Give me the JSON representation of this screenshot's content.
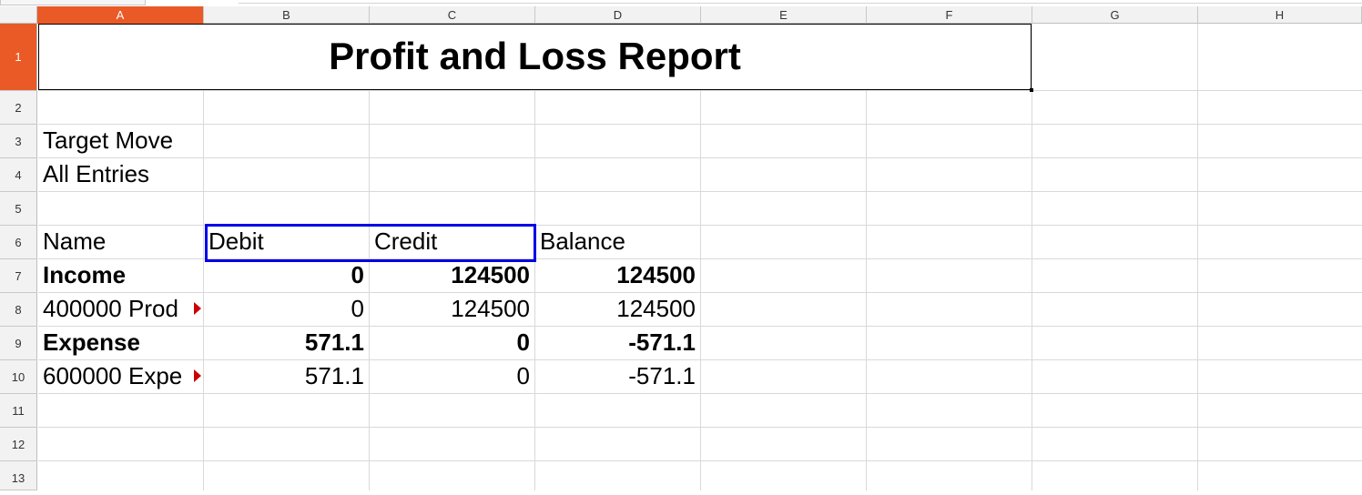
{
  "columns": [
    "A",
    "B",
    "C",
    "D",
    "E",
    "F",
    "G",
    "H"
  ],
  "rows": [
    "1",
    "2",
    "3",
    "4",
    "5",
    "6",
    "7",
    "8",
    "9",
    "10",
    "11",
    "12",
    "13"
  ],
  "active_column": "A",
  "active_row": "1",
  "report": {
    "title": "Profit and Loss Report",
    "target_move_label": "Target Move",
    "target_move_value": "All Entries",
    "headers": {
      "name": "Name",
      "debit": "Debit",
      "credit": "Credit",
      "balance": "Balance"
    },
    "lines": [
      {
        "name": "Income",
        "debit": "0",
        "credit": "124500",
        "balance": "124500",
        "bold": true
      },
      {
        "name": "400000 Prod",
        "debit": "0",
        "credit": "124500",
        "balance": "124500",
        "bold": false,
        "overflow": true
      },
      {
        "name": "Expense",
        "debit": "571.1",
        "credit": "0",
        "balance": "-571.1",
        "bold": true
      },
      {
        "name": "600000 Expe",
        "debit": "571.1",
        "credit": "0",
        "balance": "-571.1",
        "bold": false,
        "overflow": true
      }
    ]
  },
  "colors": {
    "header_active": "#e95a26",
    "selection_border": "#0000e6",
    "overflow_indicator": "#cc0000"
  }
}
